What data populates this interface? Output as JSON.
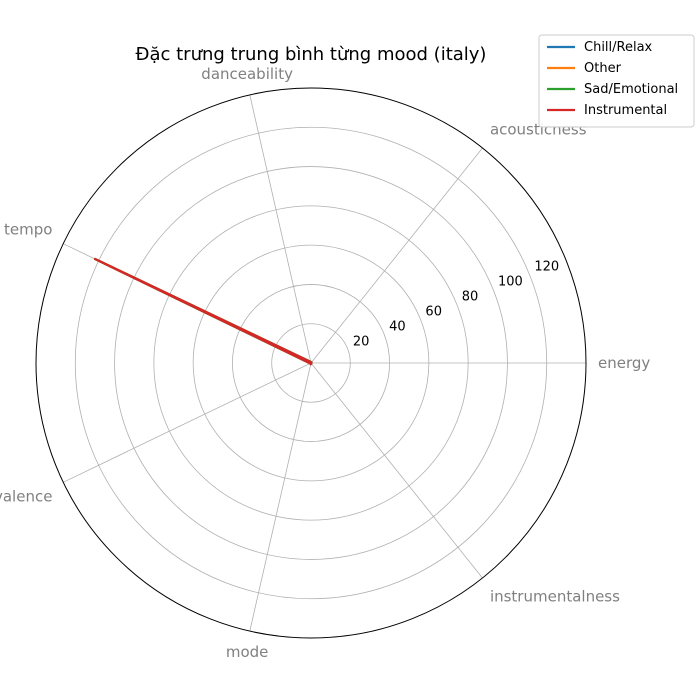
{
  "chart_data": {
    "type": "radar",
    "title": "Đặc trưng trung bình từng mood (italy)",
    "axes": [
      "energy",
      "acousticness",
      "danceability",
      "tempo",
      "valence",
      "mode",
      "instrumentalness"
    ],
    "rlim": [
      0,
      140
    ],
    "rticks": [
      20,
      40,
      60,
      80,
      100,
      120
    ],
    "grid": true,
    "legend_position": "top-right",
    "series": [
      {
        "name": "Chill/Relax",
        "color": "#1f77b4",
        "values": [
          0.6,
          0.3,
          0.6,
          122.0,
          0.5,
          0.6,
          0.05
        ]
      },
      {
        "name": "Other",
        "color": "#ff7f0e",
        "values": [
          0.62,
          0.28,
          0.62,
          122.0,
          0.52,
          0.6,
          0.04
        ]
      },
      {
        "name": "Sad/Emotional",
        "color": "#2ca02c",
        "values": [
          0.55,
          0.35,
          0.58,
          122.0,
          0.45,
          0.6,
          0.05
        ]
      },
      {
        "name": "Instrumental",
        "color": "#d62728",
        "values": [
          0.5,
          0.4,
          0.55,
          122.0,
          0.4,
          0.6,
          0.3
        ]
      }
    ]
  }
}
